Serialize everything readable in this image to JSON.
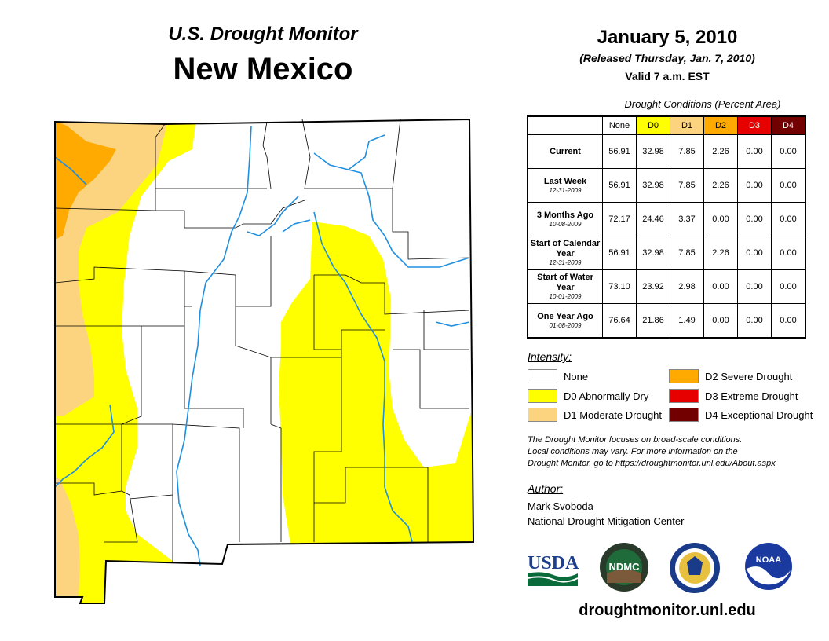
{
  "header": {
    "top_title": "U.S. Drought Monitor",
    "main_title": "New Mexico",
    "date": "January 5, 2010",
    "released": "(Released Thursday, Jan. 7, 2010)",
    "valid": "Valid 7 a.m. EST"
  },
  "table": {
    "title": "Drought Conditions (Percent Area)",
    "columns": [
      {
        "label": "None",
        "color": "#ffffff"
      },
      {
        "label": "D0",
        "color": "#ffff00"
      },
      {
        "label": "D1",
        "color": "#fcd37f"
      },
      {
        "label": "D2",
        "color": "#ffaa00"
      },
      {
        "label": "D3",
        "color": "#e60000"
      },
      {
        "label": "D4",
        "color": "#730000"
      }
    ],
    "rows": [
      {
        "label": "Current",
        "sub": "",
        "values": [
          "56.91",
          "32.98",
          "7.85",
          "2.26",
          "0.00",
          "0.00"
        ]
      },
      {
        "label": "Last Week",
        "sub": "12-31-2009",
        "values": [
          "56.91",
          "32.98",
          "7.85",
          "2.26",
          "0.00",
          "0.00"
        ]
      },
      {
        "label": "3 Months Ago",
        "sub": "10-08-2009",
        "values": [
          "72.17",
          "24.46",
          "3.37",
          "0.00",
          "0.00",
          "0.00"
        ]
      },
      {
        "label": "Start of Calendar Year",
        "sub": "12-31-2009",
        "values": [
          "56.91",
          "32.98",
          "7.85",
          "2.26",
          "0.00",
          "0.00"
        ]
      },
      {
        "label": "Start of Water Year",
        "sub": "10-01-2009",
        "values": [
          "73.10",
          "23.92",
          "2.98",
          "0.00",
          "0.00",
          "0.00"
        ]
      },
      {
        "label": "One Year Ago",
        "sub": "01-08-2009",
        "values": [
          "76.64",
          "21.86",
          "1.49",
          "0.00",
          "0.00",
          "0.00"
        ]
      }
    ]
  },
  "legend": {
    "title": "Intensity:",
    "items": [
      {
        "label": "None",
        "color": "#ffffff"
      },
      {
        "label": "D0 Abnormally Dry",
        "color": "#ffff00"
      },
      {
        "label": "D1 Moderate Drought",
        "color": "#fcd37f"
      },
      {
        "label": "D2 Severe Drought",
        "color": "#ffaa00"
      },
      {
        "label": "D3 Extreme Drought",
        "color": "#e60000"
      },
      {
        "label": "D4 Exceptional Drought",
        "color": "#730000"
      }
    ]
  },
  "note": {
    "line1": "The Drought Monitor focuses on broad-scale conditions.",
    "line2": "Local conditions may vary. For more information on the",
    "line3": "Drought Monitor, go to https://droughtmonitor.unl.edu/About.aspx"
  },
  "author": {
    "title": "Author:",
    "name": "Mark Svoboda",
    "org": "National Drought Mitigation Center"
  },
  "logos": {
    "usda": "USDA",
    "ndmc": "NDMC",
    "noaa": "NOAA"
  },
  "website": "droughtmonitor.unl.edu",
  "colors": {
    "none": "#ffffff",
    "d0": "#ffff00",
    "d1": "#fcd37f",
    "d2": "#ffaa00",
    "river": "#1f8fe0"
  }
}
